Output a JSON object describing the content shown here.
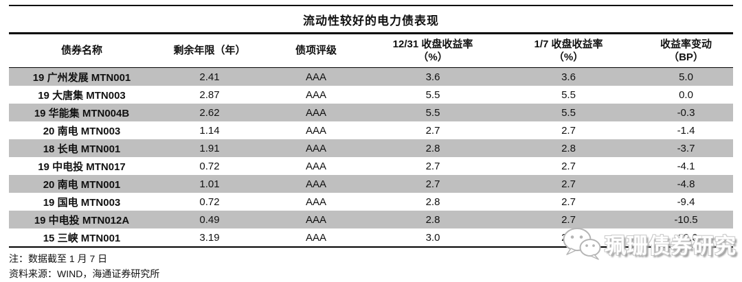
{
  "title": "流动性较好的电力债表现",
  "table": {
    "headers": [
      {
        "line1": "债券名称",
        "line2": ""
      },
      {
        "line1": "剩余年限（年）",
        "line2": ""
      },
      {
        "line1": "债项评级",
        "line2": ""
      },
      {
        "line1": "12/31 收盘收益率",
        "line2": "（%）"
      },
      {
        "line1": "1/7 收盘收益率",
        "line2": "（%）"
      },
      {
        "line1": "收益率变动",
        "line2": "（BP）"
      }
    ],
    "rows": [
      {
        "name": "19 广州发展 MTN001",
        "maturity": "2.41",
        "rating": "AAA",
        "yield_1231": "3.6",
        "yield_0107": "3.6",
        "change_bp": "5.0"
      },
      {
        "name": "19 大唐集 MTN003",
        "maturity": "2.87",
        "rating": "AAA",
        "yield_1231": "5.5",
        "yield_0107": "5.5",
        "change_bp": "0.0"
      },
      {
        "name": "19 华能集 MTN004B",
        "maturity": "2.62",
        "rating": "AAA",
        "yield_1231": "5.5",
        "yield_0107": "5.5",
        "change_bp": "-0.3"
      },
      {
        "name": "20 南电 MTN003",
        "maturity": "1.14",
        "rating": "AAA",
        "yield_1231": "2.7",
        "yield_0107": "2.7",
        "change_bp": "-1.4"
      },
      {
        "name": "18 长电 MTN001",
        "maturity": "1.91",
        "rating": "AAA",
        "yield_1231": "2.8",
        "yield_0107": "2.8",
        "change_bp": "-3.7"
      },
      {
        "name": "19 中电投 MTN017",
        "maturity": "0.72",
        "rating": "AAA",
        "yield_1231": "2.7",
        "yield_0107": "2.7",
        "change_bp": "-4.1"
      },
      {
        "name": "20 南电 MTN001",
        "maturity": "1.01",
        "rating": "AAA",
        "yield_1231": "2.7",
        "yield_0107": "2.7",
        "change_bp": "-4.8"
      },
      {
        "name": "19 国电 MTN003",
        "maturity": "0.72",
        "rating": "AAA",
        "yield_1231": "2.8",
        "yield_0107": "2.7",
        "change_bp": "-9.4"
      },
      {
        "name": "19 中电投 MTN012A",
        "maturity": "0.49",
        "rating": "AAA",
        "yield_1231": "2.8",
        "yield_0107": "2.7",
        "change_bp": "-10.5"
      },
      {
        "name": "15 三峡 MTN001",
        "maturity": "3.19",
        "rating": "AAA",
        "yield_1231": "3.0",
        "yield_0107": "2.9",
        "change_bp": "-19.0"
      }
    ]
  },
  "notes": [
    "注：数据截至 1 月 7 日",
    "资料来源：WIND，海通证券研究所"
  ],
  "watermark": {
    "icon": "wechat-icon",
    "text": "珮珊债券研究"
  },
  "colors": {
    "stripe": "#bfbfbf",
    "line": "#000000",
    "text": "#111111",
    "watermark_outline": "#b5b5b5"
  }
}
